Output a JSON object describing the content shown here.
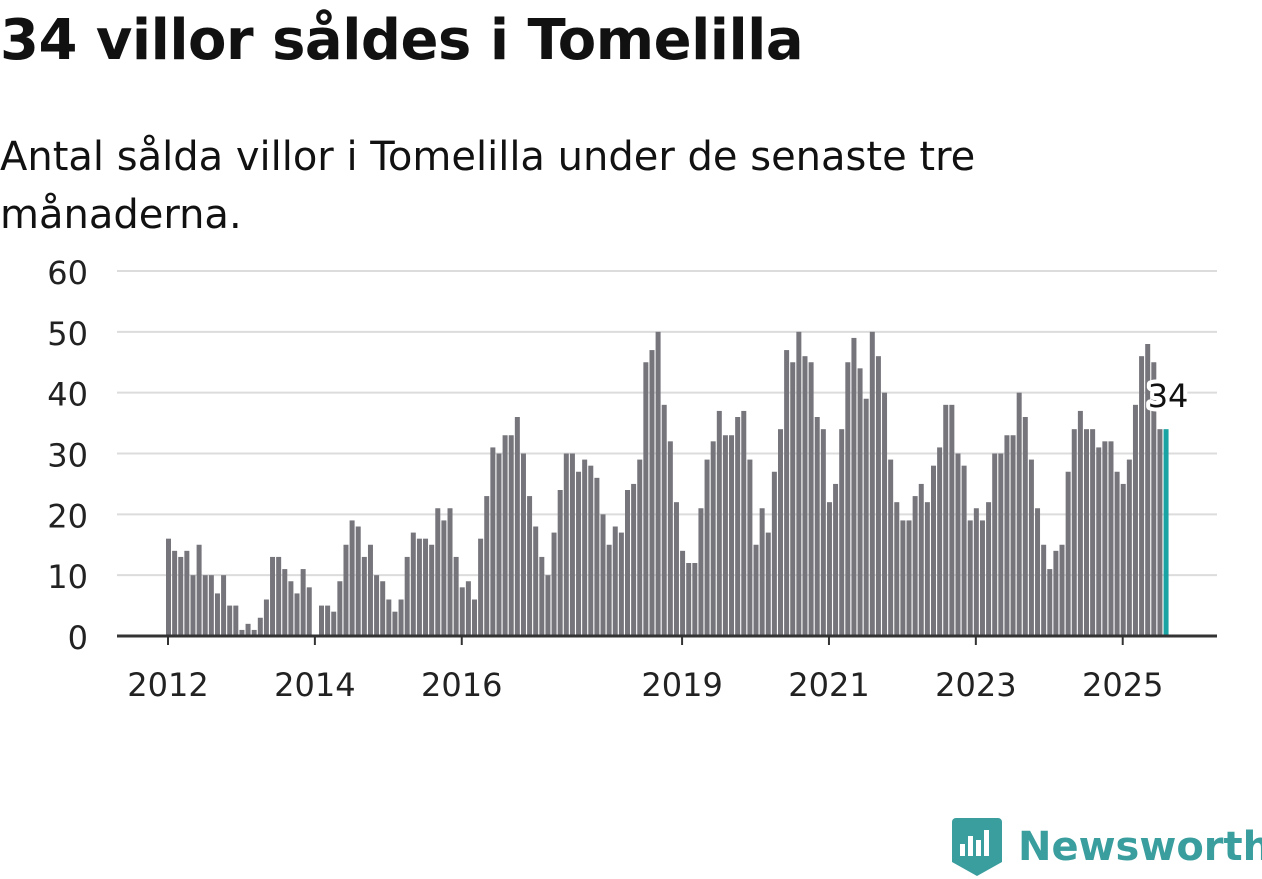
{
  "title": "34 villor såldes i Tomelilla",
  "subtitle": "Antal sålda villor i Tomelilla under de senaste tre månaderna.",
  "logo": {
    "text": "Newsworthy",
    "icon": "newsworthy-chart-badge-icon",
    "color": "#3a9e9e"
  },
  "colors": {
    "bar": "#76757c",
    "highlight": "#1aa3a3",
    "grid": "#dcdcdc",
    "axis": "#333333",
    "text": "#222222"
  },
  "chart_data": {
    "type": "bar",
    "title": "34 villor såldes i Tomelilla",
    "subtitle": "Antal sålda villor i Tomelilla under de senaste tre månaderna.",
    "xlabel": "",
    "ylabel": "",
    "ylim": [
      0,
      60
    ],
    "yticks": [
      0,
      10,
      20,
      30,
      40,
      50,
      60
    ],
    "grid": true,
    "x_tick_labels": [
      {
        "label": "2012",
        "index": 0
      },
      {
        "label": "2014",
        "index": 24
      },
      {
        "label": "2016",
        "index": 48
      },
      {
        "label": "2019",
        "index": 84
      },
      {
        "label": "2021",
        "index": 108
      },
      {
        "label": "2023",
        "index": 132
      },
      {
        "label": "2025",
        "index": 156
      }
    ],
    "start_period": "2012-01",
    "series": [
      {
        "values": [
          16,
          14,
          13,
          14,
          10,
          15,
          10,
          10,
          7,
          10,
          5,
          5,
          1,
          2,
          1,
          3,
          6,
          13,
          13,
          11,
          9,
          7,
          11,
          8,
          0,
          5,
          5,
          4,
          9,
          15,
          19,
          18,
          13,
          15,
          10,
          9,
          6,
          4,
          6,
          13,
          17,
          16,
          16,
          15,
          21,
          19,
          21,
          13,
          8,
          9,
          6,
          16,
          23,
          31,
          30,
          33,
          33,
          36,
          30,
          23,
          18,
          13,
          10,
          17,
          24,
          30,
          30,
          27,
          29,
          28,
          26,
          20,
          15,
          18,
          17,
          24,
          25,
          29,
          45,
          47,
          50,
          38,
          32,
          22,
          14,
          12,
          12,
          21,
          29,
          32,
          37,
          33,
          33,
          36,
          37,
          29,
          15,
          21,
          17,
          27,
          34,
          47,
          45,
          50,
          46,
          45,
          36,
          34,
          22,
          25,
          34,
          45,
          49,
          44,
          39,
          50,
          46,
          40,
          29,
          22,
          19,
          19,
          23,
          25,
          22,
          28,
          31,
          38,
          38,
          30,
          28,
          19,
          21,
          19,
          22,
          30,
          30,
          33,
          33,
          40,
          36,
          29,
          21,
          15,
          11,
          14,
          15,
          27,
          34,
          37,
          34,
          34,
          31,
          32,
          32,
          27,
          25,
          29,
          38,
          46,
          48,
          45,
          34,
          34
        ]
      }
    ],
    "highlight": {
      "last_value": 34,
      "label": "34"
    }
  }
}
